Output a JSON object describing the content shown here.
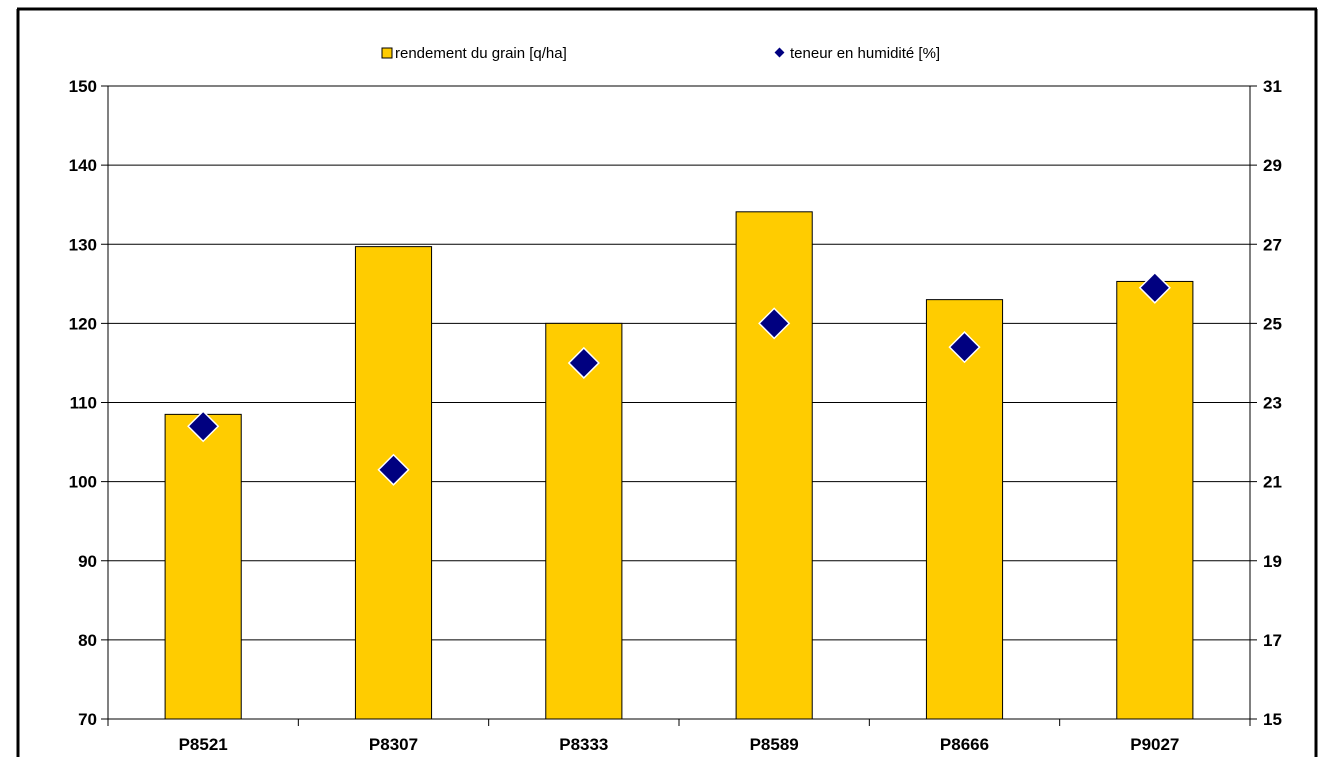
{
  "chart_data": {
    "type": "bar",
    "categories": [
      "P8521",
      "P8307",
      "P8333",
      "P8589",
      "P8666",
      "P9027"
    ],
    "series": [
      {
        "name": "rendement du grain [q/ha]",
        "type": "bar",
        "axis": "left",
        "color": "#FFCC00",
        "values": [
          108.5,
          129.7,
          120.0,
          134.1,
          123.0,
          125.3
        ]
      },
      {
        "name": "teneur en humidité [%]",
        "type": "scatter",
        "axis": "right",
        "color": "#000080",
        "values": [
          22.4,
          21.3,
          24.0,
          25.0,
          24.4,
          25.9
        ]
      }
    ],
    "y_left": {
      "min": 70,
      "max": 150,
      "ticks": [
        70,
        80,
        90,
        100,
        110,
        120,
        130,
        140,
        150
      ]
    },
    "y_right": {
      "min": 15,
      "max": 31,
      "ticks": [
        15,
        17,
        19,
        21,
        23,
        25,
        27,
        29,
        31
      ]
    },
    "grid": "horizontal",
    "legend_position": "top"
  }
}
